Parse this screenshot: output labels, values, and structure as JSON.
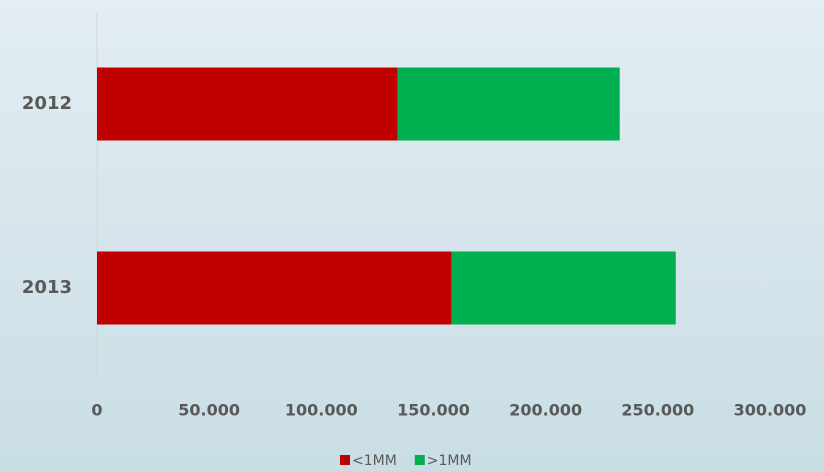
{
  "chart_data": {
    "type": "stacked_barh",
    "categories": [
      "2012",
      "2013"
    ],
    "series": [
      {
        "name": "<1MM",
        "color": "#c00000",
        "values": [
          134000,
          158000
        ]
      },
      {
        "name": ">1MM",
        "color": "#00b050",
        "values": [
          99000,
          100000
        ]
      }
    ],
    "xlim": [
      0,
      300000
    ],
    "xticks": [
      0,
      {
        "value": 50000,
        "label": "50.000"
      },
      {
        "value": 100000,
        "label": "100.000"
      },
      {
        "value": 150000,
        "label": "150.000"
      },
      {
        "value": 200000,
        "label": "200.000"
      },
      {
        "value": 250000,
        "label": "250.000"
      },
      {
        "value": 300000,
        "label": "300.000"
      }
    ],
    "legend": "bottom"
  }
}
